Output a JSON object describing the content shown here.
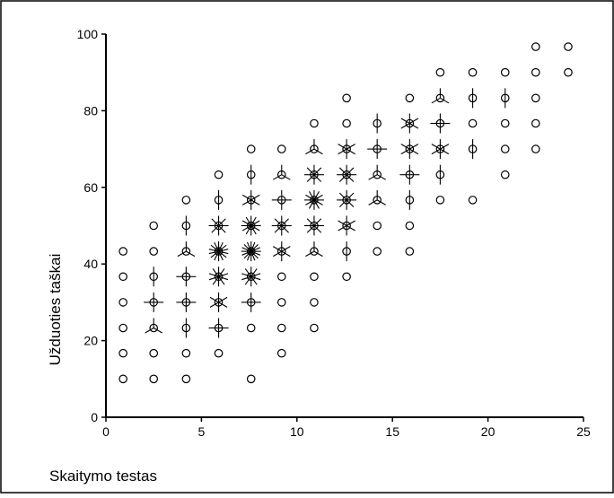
{
  "chart_data": {
    "type": "scatter",
    "title": "",
    "xlabel": "Skaitymo testas",
    "ylabel": "Užduoties taškai",
    "xlim": [
      0,
      25
    ],
    "ylim": [
      0,
      100
    ],
    "xticks": [
      0,
      5,
      10,
      15,
      20,
      25
    ],
    "yticks": [
      0,
      20,
      40,
      60,
      80,
      100
    ],
    "grid": false,
    "marker": "sunflower",
    "colors": {
      "mark": "#000000",
      "frame": "#000000",
      "background": "#ffffff"
    },
    "points": [
      {
        "x": 0.9,
        "y": 10,
        "n": 1
      },
      {
        "x": 0.9,
        "y": 16.7,
        "n": 1
      },
      {
        "x": 0.9,
        "y": 23.3,
        "n": 1
      },
      {
        "x": 0.9,
        "y": 30,
        "n": 1
      },
      {
        "x": 0.9,
        "y": 36.7,
        "n": 1
      },
      {
        "x": 0.9,
        "y": 43.3,
        "n": 1
      },
      {
        "x": 2.5,
        "y": 10,
        "n": 1
      },
      {
        "x": 2.5,
        "y": 16.7,
        "n": 1
      },
      {
        "x": 2.5,
        "y": 23.3,
        "n": 3
      },
      {
        "x": 2.5,
        "y": 30,
        "n": 4
      },
      {
        "x": 2.5,
        "y": 36.7,
        "n": 2
      },
      {
        "x": 2.5,
        "y": 43.3,
        "n": 1
      },
      {
        "x": 2.5,
        "y": 50,
        "n": 1
      },
      {
        "x": 4.2,
        "y": 10,
        "n": 1
      },
      {
        "x": 4.2,
        "y": 16.7,
        "n": 1
      },
      {
        "x": 4.2,
        "y": 23.3,
        "n": 2
      },
      {
        "x": 4.2,
        "y": 30,
        "n": 4
      },
      {
        "x": 4.2,
        "y": 36.7,
        "n": 4
      },
      {
        "x": 4.2,
        "y": 43.3,
        "n": 3
      },
      {
        "x": 4.2,
        "y": 50,
        "n": 2
      },
      {
        "x": 4.2,
        "y": 56.7,
        "n": 1
      },
      {
        "x": 5.9,
        "y": 16.7,
        "n": 1
      },
      {
        "x": 5.9,
        "y": 23.3,
        "n": 4
      },
      {
        "x": 5.9,
        "y": 30,
        "n": 6
      },
      {
        "x": 5.9,
        "y": 36.7,
        "n": 10
      },
      {
        "x": 5.9,
        "y": 43.3,
        "n": 14
      },
      {
        "x": 5.9,
        "y": 50,
        "n": 8
      },
      {
        "x": 5.9,
        "y": 56.7,
        "n": 2
      },
      {
        "x": 5.9,
        "y": 63.3,
        "n": 1
      },
      {
        "x": 7.6,
        "y": 10,
        "n": 1
      },
      {
        "x": 7.6,
        "y": 23.3,
        "n": 1
      },
      {
        "x": 7.6,
        "y": 30,
        "n": 4
      },
      {
        "x": 7.6,
        "y": 36.7,
        "n": 10
      },
      {
        "x": 7.6,
        "y": 43.3,
        "n": 16
      },
      {
        "x": 7.6,
        "y": 50,
        "n": 12
      },
      {
        "x": 7.6,
        "y": 56.7,
        "n": 6
      },
      {
        "x": 7.6,
        "y": 63.3,
        "n": 2
      },
      {
        "x": 7.6,
        "y": 70,
        "n": 1
      },
      {
        "x": 9.2,
        "y": 16.7,
        "n": 1
      },
      {
        "x": 9.2,
        "y": 23.3,
        "n": 1
      },
      {
        "x": 9.2,
        "y": 30,
        "n": 1
      },
      {
        "x": 9.2,
        "y": 36.7,
        "n": 1
      },
      {
        "x": 9.2,
        "y": 43.3,
        "n": 6
      },
      {
        "x": 9.2,
        "y": 50,
        "n": 8
      },
      {
        "x": 9.2,
        "y": 56.7,
        "n": 4
      },
      {
        "x": 9.2,
        "y": 63.3,
        "n": 3
      },
      {
        "x": 9.2,
        "y": 70,
        "n": 1
      },
      {
        "x": 10.9,
        "y": 23.3,
        "n": 1
      },
      {
        "x": 10.9,
        "y": 30,
        "n": 1
      },
      {
        "x": 10.9,
        "y": 36.7,
        "n": 1
      },
      {
        "x": 10.9,
        "y": 43.3,
        "n": 3
      },
      {
        "x": 10.9,
        "y": 50,
        "n": 8
      },
      {
        "x": 10.9,
        "y": 56.7,
        "n": 12
      },
      {
        "x": 10.9,
        "y": 63.3,
        "n": 8
      },
      {
        "x": 10.9,
        "y": 70,
        "n": 3
      },
      {
        "x": 10.9,
        "y": 76.7,
        "n": 1
      },
      {
        "x": 12.6,
        "y": 36.7,
        "n": 1
      },
      {
        "x": 12.6,
        "y": 43.3,
        "n": 2
      },
      {
        "x": 12.6,
        "y": 50,
        "n": 6
      },
      {
        "x": 12.6,
        "y": 56.7,
        "n": 8
      },
      {
        "x": 12.6,
        "y": 63.3,
        "n": 8
      },
      {
        "x": 12.6,
        "y": 70,
        "n": 6
      },
      {
        "x": 12.6,
        "y": 76.7,
        "n": 1
      },
      {
        "x": 12.6,
        "y": 83.3,
        "n": 1
      },
      {
        "x": 14.2,
        "y": 43.3,
        "n": 1
      },
      {
        "x": 14.2,
        "y": 50,
        "n": 1
      },
      {
        "x": 14.2,
        "y": 56.7,
        "n": 3
      },
      {
        "x": 14.2,
        "y": 63.3,
        "n": 3
      },
      {
        "x": 14.2,
        "y": 70,
        "n": 4
      },
      {
        "x": 14.2,
        "y": 76.7,
        "n": 2
      },
      {
        "x": 15.9,
        "y": 43.3,
        "n": 1
      },
      {
        "x": 15.9,
        "y": 50,
        "n": 1
      },
      {
        "x": 15.9,
        "y": 56.7,
        "n": 2
      },
      {
        "x": 15.9,
        "y": 63.3,
        "n": 4
      },
      {
        "x": 15.9,
        "y": 70,
        "n": 6
      },
      {
        "x": 15.9,
        "y": 76.7,
        "n": 6
      },
      {
        "x": 15.9,
        "y": 83.3,
        "n": 1
      },
      {
        "x": 17.5,
        "y": 56.7,
        "n": 1
      },
      {
        "x": 17.5,
        "y": 63.3,
        "n": 2
      },
      {
        "x": 17.5,
        "y": 70,
        "n": 6
      },
      {
        "x": 17.5,
        "y": 76.7,
        "n": 4
      },
      {
        "x": 17.5,
        "y": 83.3,
        "n": 3
      },
      {
        "x": 17.5,
        "y": 90,
        "n": 1
      },
      {
        "x": 19.2,
        "y": 56.7,
        "n": 1
      },
      {
        "x": 19.2,
        "y": 70,
        "n": 2
      },
      {
        "x": 19.2,
        "y": 76.7,
        "n": 1
      },
      {
        "x": 19.2,
        "y": 83.3,
        "n": 2
      },
      {
        "x": 19.2,
        "y": 90,
        "n": 1
      },
      {
        "x": 20.9,
        "y": 63.3,
        "n": 1
      },
      {
        "x": 20.9,
        "y": 70,
        "n": 1
      },
      {
        "x": 20.9,
        "y": 76.7,
        "n": 1
      },
      {
        "x": 20.9,
        "y": 83.3,
        "n": 2
      },
      {
        "x": 20.9,
        "y": 90,
        "n": 1
      },
      {
        "x": 22.5,
        "y": 70,
        "n": 1
      },
      {
        "x": 22.5,
        "y": 76.7,
        "n": 1
      },
      {
        "x": 22.5,
        "y": 83.3,
        "n": 1
      },
      {
        "x": 22.5,
        "y": 90,
        "n": 1
      },
      {
        "x": 22.5,
        "y": 96.7,
        "n": 1
      },
      {
        "x": 24.2,
        "y": 90,
        "n": 1
      },
      {
        "x": 24.2,
        "y": 96.7,
        "n": 1
      }
    ]
  }
}
